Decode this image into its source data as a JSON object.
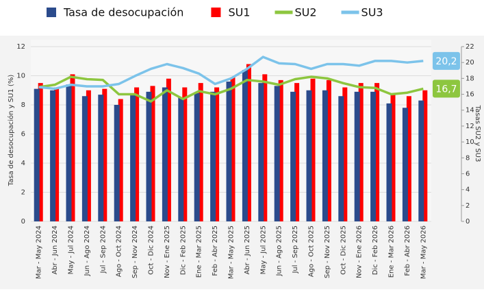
{
  "chart_data": {
    "type": "bar_line",
    "y_label": "Tasa de desocupación y SU1 (%)",
    "y2_label": "Tasas SU2 y SU3",
    "categories": [
      "Mar - May 2024",
      "Abr - Jun 2024",
      "May - Jul 2024",
      "Jun - Ago 2024",
      "Jul - Sep 2024",
      "Ago - Oct 2024",
      "Sep - Nov 2024",
      "Oct - Dic 2024",
      "Nov - Ene 2025",
      "Dic - Feb 2025",
      "Ene - Mar 2025",
      "Feb - Abr 2025",
      "Mar - May 2025",
      "Abr - Jun 2025",
      "May - Jul 2025",
      "Jun - Ago 2025",
      "Jul - Sep 2025",
      "Ago - Oct 2025",
      "Sep - Nov 2025",
      "Oct - Dic 2025",
      "Nov - Ene 2026",
      "Dic - Feb 2026",
      "Ene - Mar 2026",
      "Feb - Abr 2026",
      "Mar - May 2026"
    ],
    "series": [
      {
        "name": "Tasa de desocupación",
        "kind": "bar",
        "color": "#2b4b8c",
        "values": [
          9.1,
          9.0,
          9.4,
          8.6,
          8.7,
          8.0,
          8.8,
          8.9,
          9.2,
          8.5,
          8.8,
          8.9,
          9.6,
          10.4,
          9.5,
          9.3,
          8.9,
          9.0,
          9.0,
          8.6,
          8.9,
          8.9,
          8.1,
          7.8,
          8.3
        ]
      },
      {
        "name": "SU1",
        "kind": "bar",
        "color": "#ff0000",
        "values": [
          9.5,
          9.2,
          10.1,
          9.0,
          9.1,
          8.4,
          9.2,
          9.3,
          9.8,
          9.2,
          9.5,
          9.2,
          9.9,
          10.8,
          10.1,
          9.7,
          9.5,
          9.8,
          9.7,
          9.2,
          9.5,
          9.5,
          8.7,
          8.6,
          9.0
        ]
      },
      {
        "name": "SU2",
        "kind": "line",
        "axis": "y2",
        "color": "#8dc63f",
        "values": [
          16.9,
          17.2,
          18.2,
          17.9,
          17.8,
          16.0,
          16.0,
          15.1,
          16.5,
          15.4,
          16.4,
          16.0,
          16.7,
          17.8,
          17.6,
          17.2,
          17.9,
          18.2,
          18.0,
          17.4,
          16.9,
          16.8,
          16.0,
          16.2,
          16.7
        ],
        "value_labels": [
          null,
          null,
          null,
          null,
          null,
          null,
          null,
          null,
          null,
          null,
          null,
          null,
          null,
          null,
          null,
          null,
          null,
          null,
          null,
          null,
          null,
          null,
          null,
          null,
          "16,7"
        ]
      },
      {
        "name": "SU3",
        "kind": "line",
        "axis": "y2",
        "color": "#7cc3ea",
        "values": [
          16.9,
          16.7,
          17.2,
          17.0,
          17.0,
          17.3,
          18.3,
          19.2,
          19.8,
          19.3,
          18.6,
          17.3,
          18.0,
          19.2,
          20.7,
          19.9,
          19.8,
          19.2,
          19.8,
          19.8,
          19.6,
          20.2,
          20.2,
          20.0,
          20.2
        ],
        "value_labels": [
          null,
          null,
          null,
          null,
          null,
          null,
          null,
          null,
          null,
          null,
          null,
          null,
          null,
          null,
          null,
          null,
          null,
          null,
          null,
          null,
          null,
          null,
          null,
          null,
          "20,2"
        ]
      }
    ],
    "ylim": [
      0,
      12
    ],
    "yticks": [
      0,
      2,
      4,
      6,
      8,
      10,
      12
    ],
    "y2lim": [
      0,
      22
    ],
    "y2ticks": [
      0,
      2,
      4,
      6,
      8,
      10,
      12,
      14,
      16,
      18,
      20,
      22
    ],
    "grid": true
  }
}
